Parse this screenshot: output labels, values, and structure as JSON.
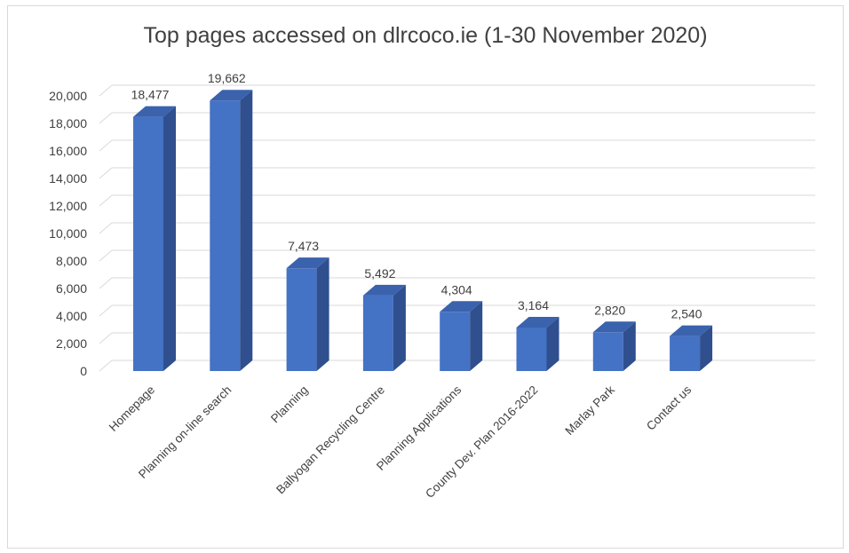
{
  "chart_data": {
    "type": "bar",
    "style": "3d-column",
    "title": "Top pages accessed on dlrcoco.ie (1-30 November 2020)",
    "categories": [
      "Homepage",
      "Planning on-line search",
      "Planning",
      "Ballyogan Recycling Centre",
      "Planning Applications",
      "County Dev. Plan 2016-2022",
      "Marlay Park",
      "Contact us"
    ],
    "values": [
      18477,
      19662,
      7473,
      5492,
      4304,
      3164,
      2820,
      2540
    ],
    "data_labels": [
      "18,477",
      "19,662",
      "7,473",
      "5,492",
      "4,304",
      "3,164",
      "2,820",
      "2,540"
    ],
    "y_ticks": [
      0,
      2000,
      4000,
      6000,
      8000,
      10000,
      12000,
      14000,
      16000,
      18000,
      20000
    ],
    "y_tick_labels": [
      "0",
      "2,000",
      "4,000",
      "6,000",
      "8,000",
      "10,000",
      "12,000",
      "14,000",
      "16,000",
      "18,000",
      "20,000"
    ],
    "ylim": [
      0,
      20000
    ],
    "xlabel": "",
    "ylabel": "",
    "grid": true,
    "legend": "none",
    "colors": {
      "bar_front": "#4472c4",
      "bar_side": "#2f4f8f",
      "bar_top": "#3a62ad",
      "grid": "#d9d9d9",
      "text": "#404040"
    }
  }
}
